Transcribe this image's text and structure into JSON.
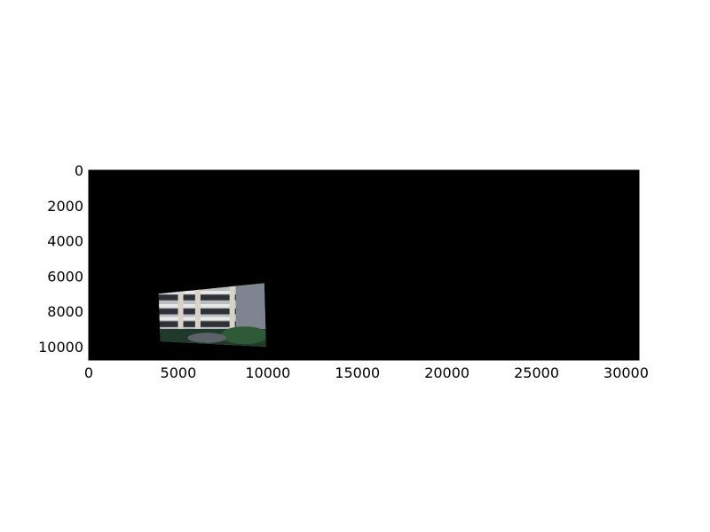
{
  "chart_data": {
    "type": "image",
    "title": "",
    "xlabel": "",
    "ylabel": "",
    "xlim": [
      0,
      30720
    ],
    "ylim": [
      10752,
      0
    ],
    "x_ticks": [
      0,
      5000,
      10000,
      15000,
      20000,
      25000,
      30000
    ],
    "x_tick_labels": [
      "0",
      "5000",
      "10000",
      "15000",
      "20000",
      "25000",
      "30000"
    ],
    "y_ticks": [
      0,
      2000,
      4000,
      6000,
      8000,
      10000
    ],
    "y_tick_labels": [
      "0",
      "2000",
      "4000",
      "6000",
      "8000",
      "10000"
    ],
    "grid": false,
    "background_color": "#000000",
    "embedded_image": {
      "description_icon": "building-photo-icon",
      "corners": [
        [
          3900,
          7000
        ],
        [
          9800,
          6400
        ],
        [
          9900,
          10000
        ],
        [
          4000,
          9700
        ]
      ]
    }
  },
  "colors": {
    "plot_background": "#000000",
    "axis_line": "#000000",
    "tick_text": "#000000"
  }
}
